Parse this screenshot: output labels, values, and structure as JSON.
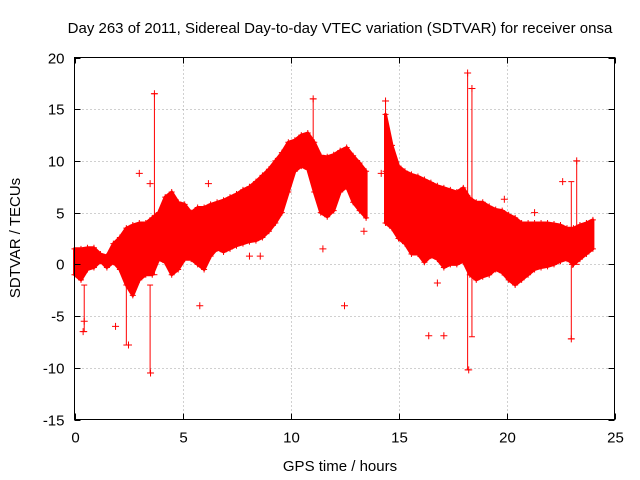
{
  "chart_data": {
    "type": "scatter",
    "title": "Day 263 of 2011, Sidereal Day-to-day VTEC variation (SDTVAR) for receiver onsa",
    "xlabel": "GPS time / hours",
    "ylabel": "SDTVAR / TECUs",
    "xlim": [
      0,
      25
    ],
    "ylim": [
      -15,
      20
    ],
    "xticks": [
      0,
      5,
      10,
      15,
      20,
      25
    ],
    "yticks": [
      -15,
      -10,
      -5,
      0,
      5,
      10,
      15,
      20
    ],
    "grid": true,
    "series_color": "#ff0000",
    "marker": "+",
    "series": [
      {
        "name": "SDTVAR",
        "envelope": {
          "x": [
            0.0,
            0.3,
            0.6,
            0.9,
            1.2,
            1.5,
            1.8,
            2.1,
            2.4,
            2.7,
            3.0,
            3.3,
            3.6,
            3.9,
            4.2,
            4.5,
            4.8,
            5.1,
            5.4,
            5.7,
            6.0,
            6.3,
            6.6,
            6.9,
            7.2,
            7.5,
            7.8,
            8.1,
            8.4,
            8.7,
            9.0,
            9.3,
            9.6,
            9.9,
            10.2,
            10.5,
            10.8,
            11.1,
            11.4,
            11.7,
            12.0,
            12.3,
            12.6,
            12.9,
            13.2,
            13.5,
            14.4,
            14.7,
            15.0,
            15.3,
            15.6,
            15.9,
            16.2,
            16.5,
            16.8,
            17.1,
            17.4,
            17.7,
            18.0,
            18.3,
            18.6,
            18.9,
            19.2,
            19.5,
            19.8,
            20.1,
            20.4,
            20.7,
            21.0,
            21.3,
            21.6,
            21.9,
            22.2,
            22.5,
            22.8,
            23.1,
            23.4,
            23.7,
            24.0
          ],
          "upper": [
            1.5,
            1.5,
            1.6,
            1.6,
            1.0,
            0.8,
            2.0,
            2.6,
            3.5,
            3.8,
            4.0,
            4.0,
            4.5,
            5.0,
            6.5,
            7.0,
            6.0,
            5.8,
            5.0,
            5.5,
            5.5,
            5.8,
            6.0,
            6.2,
            6.5,
            6.8,
            7.2,
            7.5,
            8.0,
            8.6,
            9.2,
            10.0,
            10.8,
            11.8,
            12.0,
            12.5,
            12.7,
            11.8,
            10.5,
            10.4,
            10.6,
            11.0,
            11.3,
            10.5,
            9.8,
            9.0,
            14.5,
            11.5,
            9.5,
            9.0,
            8.7,
            8.5,
            8.2,
            7.9,
            7.6,
            7.4,
            7.2,
            7.0,
            7.4,
            6.4,
            6.0,
            6.0,
            5.6,
            5.3,
            5.2,
            4.8,
            4.5,
            4.0,
            4.0,
            4.0,
            4.0,
            4.0,
            3.9,
            3.8,
            3.5,
            3.5,
            3.8,
            4.0,
            4.3
          ],
          "lower": [
            -1.0,
            -1.5,
            -0.5,
            -0.3,
            0.3,
            -0.3,
            0.2,
            -0.5,
            -2.0,
            -3.0,
            -1.5,
            -1.0,
            -1.0,
            0.5,
            0.2,
            -1.0,
            -0.5,
            0.5,
            0.5,
            0.0,
            -0.5,
            0.8,
            1.5,
            1.2,
            1.5,
            1.8,
            2.0,
            2.2,
            2.3,
            2.6,
            3.2,
            4.0,
            5.0,
            7.0,
            9.0,
            9.5,
            9.2,
            7.0,
            5.0,
            4.6,
            5.2,
            7.0,
            7.5,
            6.0,
            5.2,
            4.5,
            4.0,
            3.5,
            2.5,
            2.0,
            1.0,
            1.0,
            0.2,
            0.8,
            0.5,
            -0.3,
            0.0,
            0.0,
            0.3,
            -1.0,
            -1.5,
            -1.2,
            -1.0,
            -0.5,
            -0.8,
            -1.5,
            -2.0,
            -1.5,
            -1.0,
            -0.5,
            -0.3,
            -0.2,
            0.0,
            0.3,
            0.5,
            0.0,
            0.5,
            1.0,
            1.5
          ]
        },
        "outliers": [
          {
            "x": 3.52,
            "y": -10.5
          },
          {
            "x": 3.7,
            "y": 16.5
          },
          {
            "x": 2.5,
            "y": -7.8
          },
          {
            "x": 1.9,
            "y": -6.0
          },
          {
            "x": 0.45,
            "y": -5.5
          },
          {
            "x": 0.4,
            "y": -6.5
          },
          {
            "x": 3.0,
            "y": 8.8
          },
          {
            "x": 3.5,
            "y": 7.8
          },
          {
            "x": 6.2,
            "y": 7.8
          },
          {
            "x": 5.8,
            "y": -4.0
          },
          {
            "x": 8.1,
            "y": 0.8
          },
          {
            "x": 8.6,
            "y": 0.8
          },
          {
            "x": 11.05,
            "y": 16.0
          },
          {
            "x": 11.5,
            "y": 1.5
          },
          {
            "x": 12.5,
            "y": -4.0
          },
          {
            "x": 13.4,
            "y": 3.2
          },
          {
            "x": 14.2,
            "y": 8.8
          },
          {
            "x": 14.4,
            "y": 15.8
          },
          {
            "x": 16.4,
            "y": -6.9
          },
          {
            "x": 16.8,
            "y": -1.8
          },
          {
            "x": 17.1,
            "y": -6.9
          },
          {
            "x": 18.25,
            "y": -10.2
          },
          {
            "x": 18.2,
            "y": 18.5
          },
          {
            "x": 18.4,
            "y": 17.0
          },
          {
            "x": 19.0,
            "y": 5.5
          },
          {
            "x": 19.9,
            "y": 6.3
          },
          {
            "x": 21.3,
            "y": 5.0
          },
          {
            "x": 22.6,
            "y": 8.0
          },
          {
            "x": 23.0,
            "y": -7.2
          },
          {
            "x": 23.25,
            "y": 10.0
          },
          {
            "x": 23.05,
            "y": 0.0
          }
        ],
        "vertical_bars": [
          {
            "x": 3.7,
            "y1": -1.0,
            "y2": 16.5
          },
          {
            "x": 3.5,
            "y1": -10.5,
            "y2": -2.0
          },
          {
            "x": 18.2,
            "y1": -10.2,
            "y2": 18.5
          },
          {
            "x": 18.4,
            "y1": -7.0,
            "y2": 17.0
          },
          {
            "x": 23.0,
            "y1": -7.2,
            "y2": 8.0
          },
          {
            "x": 23.25,
            "y1": 0.0,
            "y2": 10.0
          },
          {
            "x": 11.05,
            "y1": 8.0,
            "y2": 16.0
          },
          {
            "x": 14.4,
            "y1": 9.0,
            "y2": 15.8
          },
          {
            "x": 2.4,
            "y1": -7.8,
            "y2": 3.0
          },
          {
            "x": 0.45,
            "y1": -6.5,
            "y2": -2.0
          }
        ]
      }
    ]
  }
}
